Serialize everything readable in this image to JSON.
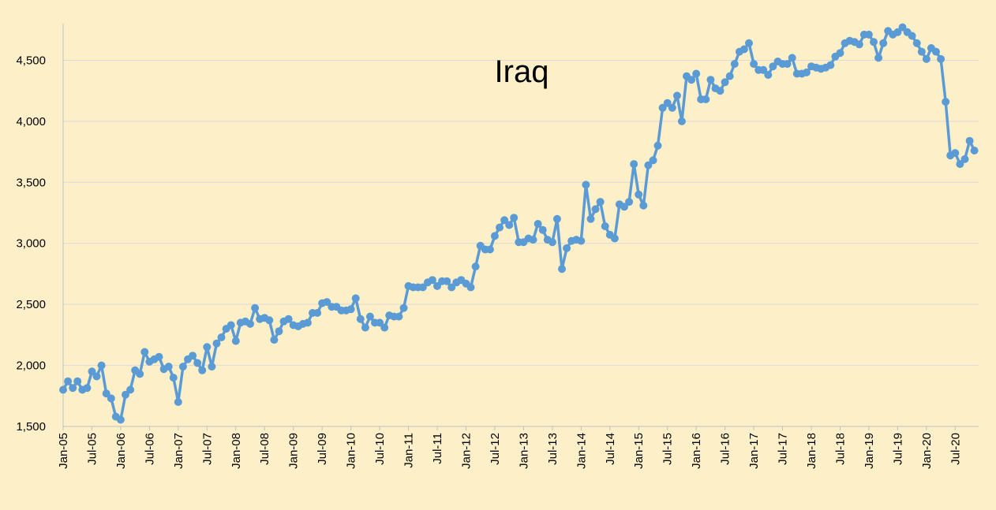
{
  "chart_data": {
    "type": "line",
    "title": "Iraq",
    "xlabel": "",
    "ylabel": "",
    "ylim": [
      1500,
      4800
    ],
    "yticks": [
      1500,
      2000,
      2500,
      3000,
      3500,
      4000,
      4500
    ],
    "ytick_labels": [
      "1,500",
      "2,000",
      "2,500",
      "3,000",
      "3,500",
      "4,000",
      "4,500"
    ],
    "xtick_labels": [
      "Jan-05",
      "Jul-05",
      "Jan-06",
      "Jul-06",
      "Jan-07",
      "Jul-07",
      "Jan-08",
      "Jul-08",
      "Jan-09",
      "Jul-09",
      "Jan-10",
      "Jul-10",
      "Jan-11",
      "Jul-11",
      "Jan-12",
      "Jul-12",
      "Jan-13",
      "Jul-13",
      "Jan-14",
      "Jul-14",
      "Jan-15",
      "Jul-15",
      "Jan-16",
      "Jul-16",
      "Jan-17",
      "Jul-17",
      "Jan-18",
      "Jul-18",
      "Jan-19",
      "Jul-19",
      "Jan-20",
      "Jul-20"
    ],
    "xtick_step_months": 6,
    "grid": true,
    "legend": "none",
    "color": "#5b9bd5",
    "start": "Jan-05",
    "series": [
      {
        "values": [
          1800,
          1870,
          1815,
          1870,
          1800,
          1815,
          1950,
          1910,
          2000,
          1770,
          1730,
          1580,
          1555,
          1760,
          1800,
          1960,
          1930,
          2110,
          2030,
          2050,
          2070,
          1970,
          1990,
          1900,
          1700,
          1990,
          2050,
          2080,
          2020,
          1960,
          2150,
          1990,
          2180,
          2230,
          2300,
          2330,
          2200,
          2350,
          2360,
          2340,
          2470,
          2380,
          2390,
          2370,
          2210,
          2280,
          2360,
          2380,
          2330,
          2320,
          2340,
          2350,
          2430,
          2430,
          2510,
          2520,
          2480,
          2480,
          2450,
          2450,
          2460,
          2550,
          2380,
          2310,
          2400,
          2350,
          2350,
          2310,
          2410,
          2400,
          2400,
          2470,
          2650,
          2640,
          2640,
          2640,
          2680,
          2700,
          2650,
          2690,
          2690,
          2640,
          2680,
          2700,
          2670,
          2640,
          2810,
          2980,
          2950,
          2950,
          3060,
          3130,
          3190,
          3150,
          3210,
          3010,
          3010,
          3040,
          3030,
          3160,
          3110,
          3030,
          3010,
          3200,
          2790,
          2960,
          3020,
          3030,
          3020,
          3480,
          3200,
          3280,
          3340,
          3140,
          3070,
          3040,
          3320,
          3300,
          3340,
          3650,
          3400,
          3310,
          3640,
          3680,
          3800,
          4110,
          4150,
          4110,
          4210,
          4000,
          4370,
          4340,
          4390,
          4180,
          4180,
          4340,
          4270,
          4250,
          4320,
          4370,
          4470,
          4570,
          4590,
          4640,
          4470,
          4420,
          4420,
          4380,
          4450,
          4490,
          4470,
          4470,
          4520,
          4390,
          4390,
          4400,
          4450,
          4440,
          4430,
          4440,
          4460,
          4530,
          4560,
          4640,
          4660,
          4650,
          4630,
          4710,
          4710,
          4650,
          4520,
          4640,
          4740,
          4710,
          4730,
          4770,
          4730,
          4700,
          4640,
          4570,
          4510,
          4600,
          4570,
          4510,
          4160,
          3720,
          3740,
          3650,
          3690,
          3840,
          3760
        ]
      }
    ]
  }
}
